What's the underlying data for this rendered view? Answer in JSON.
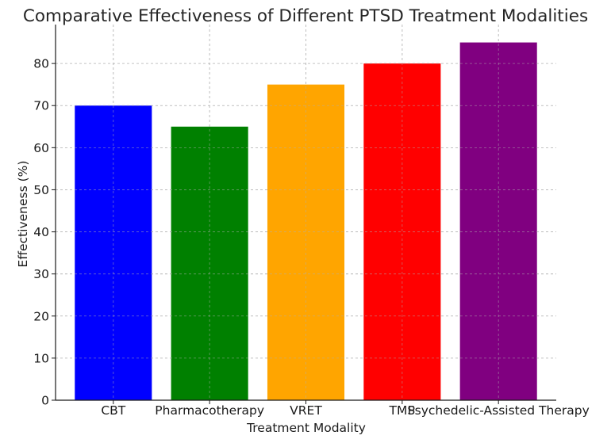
{
  "chart_data": {
    "type": "bar",
    "title": "Comparative Effectiveness of Different PTSD Treatment Modalities",
    "xlabel": "Treatment Modality",
    "ylabel": "Effectiveness (%)",
    "categories": [
      "CBT",
      "Pharmacotherapy",
      "VRET",
      "TMS",
      "Psychedelic-Assisted Therapy"
    ],
    "values": [
      70,
      65,
      75,
      80,
      85
    ],
    "colors": [
      "#0000ff",
      "#008000",
      "#ffa500",
      "#ff0000",
      "#800080"
    ],
    "ylim": [
      0,
      89.25
    ],
    "yticks": [
      0,
      10,
      20,
      30,
      40,
      50,
      60,
      70,
      80
    ],
    "grid": true,
    "legend": "none"
  }
}
